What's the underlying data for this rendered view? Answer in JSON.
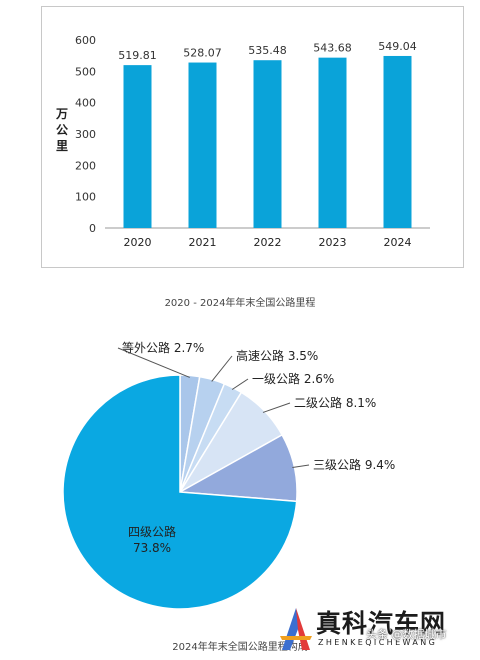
{
  "chart_data": [
    {
      "type": "bar",
      "caption": "2020 - 2024年年末全国公路里程",
      "ylabel": "万公里",
      "categories": [
        "2020",
        "2021",
        "2022",
        "2023",
        "2024"
      ],
      "values": [
        519.81,
        528.07,
        535.48,
        543.68,
        549.04
      ],
      "value_labels": [
        "519.81",
        "528.07",
        "535.48",
        "543.68",
        "549.04"
      ],
      "yticks": [
        "0",
        "100",
        "200",
        "300",
        "400",
        "500",
        "600"
      ],
      "ylim": [
        0,
        600
      ],
      "bar_color": "#0aa3d9",
      "grid": false
    },
    {
      "type": "pie",
      "caption": "2024年年末全国公路里程构成",
      "slices": [
        {
          "name": "等外公路",
          "value": 2.7,
          "label": "等外公路 2.7%",
          "color": "#a9c6ea"
        },
        {
          "name": "高速公路",
          "value": 3.5,
          "label": "高速公路 3.5%",
          "color": "#b7d1ef"
        },
        {
          "name": "一级公路",
          "value": 2.6,
          "label": "一级公路 2.6%",
          "color": "#c7dcf3"
        },
        {
          "name": "二级公路",
          "value": 8.1,
          "label": "二级公路 8.1%",
          "color": "#d7e4f5"
        },
        {
          "name": "三级公路",
          "value": 9.4,
          "label": "三级公路 9.4%",
          "color": "#92a9dc"
        },
        {
          "name": "四级公路",
          "value": 73.8,
          "label": "四级公路",
          "label2": "73.8%",
          "color": "#0aa8e2"
        }
      ]
    }
  ],
  "watermark": {
    "title": "真科汽车网",
    "subtitle": "ZHENKEQICHEWANG",
    "tag": "头条 @数据城市",
    "logo_colors": [
      "#3b6fd0",
      "#e23a3a",
      "#f0a020"
    ]
  }
}
